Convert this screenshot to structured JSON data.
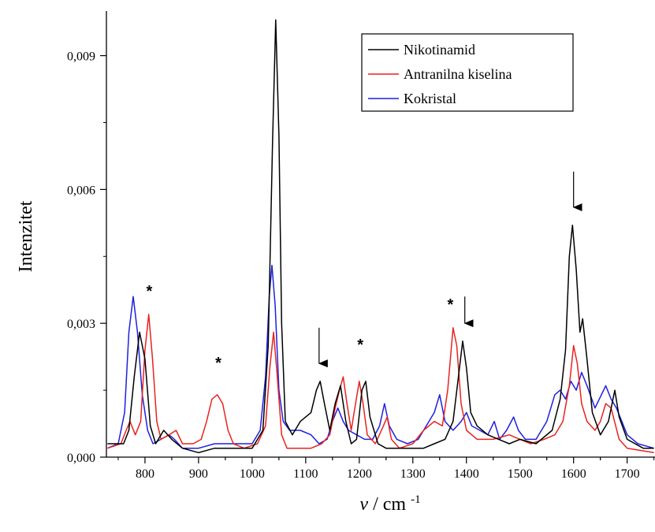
{
  "chart_data": {
    "type": "line",
    "xlabel_main": "ν",
    "xlabel_unit": "/ cm",
    "xlabel_sup": "-1",
    "ylabel": "Intenzitet",
    "xlim": [
      728,
      1752
    ],
    "ylim": [
      0,
      0.01
    ],
    "x_ticks": [
      800,
      900,
      1000,
      1100,
      1200,
      1300,
      1400,
      1500,
      1600,
      1700
    ],
    "x_tick_labels": [
      "800",
      "900",
      "1000",
      "1100",
      "1200",
      "1300",
      "1400",
      "1500",
      "1600",
      "1700"
    ],
    "y_ticks": [
      0,
      0.003,
      0.006,
      0.009
    ],
    "y_tick_labels": [
      "0,000",
      "0,003",
      "0,006",
      "0,009"
    ],
    "grid": false,
    "legend_position": "top-right",
    "series": [
      {
        "name": "Nikotinamid",
        "color": "#000000",
        "points": [
          [
            730,
            0.0003
          ],
          [
            760,
            0.0003
          ],
          [
            770,
            0.0006
          ],
          [
            780,
            0.0018
          ],
          [
            790,
            0.0028
          ],
          [
            800,
            0.0022
          ],
          [
            810,
            0.0007
          ],
          [
            820,
            0.0003
          ],
          [
            835,
            0.0006
          ],
          [
            850,
            0.0004
          ],
          [
            870,
            0.0002
          ],
          [
            900,
            0.0001
          ],
          [
            930,
            0.0002
          ],
          [
            960,
            0.0002
          ],
          [
            1000,
            0.0002
          ],
          [
            1020,
            0.0006
          ],
          [
            1030,
            0.0025
          ],
          [
            1038,
            0.007
          ],
          [
            1044,
            0.0098
          ],
          [
            1050,
            0.0072
          ],
          [
            1055,
            0.003
          ],
          [
            1062,
            0.0008
          ],
          [
            1075,
            0.0005
          ],
          [
            1090,
            0.0008
          ],
          [
            1110,
            0.001
          ],
          [
            1120,
            0.0015
          ],
          [
            1127,
            0.0017
          ],
          [
            1135,
            0.0012
          ],
          [
            1145,
            0.0006
          ],
          [
            1155,
            0.0012
          ],
          [
            1165,
            0.0016
          ],
          [
            1175,
            0.0008
          ],
          [
            1185,
            0.0003
          ],
          [
            1195,
            0.0004
          ],
          [
            1205,
            0.0015
          ],
          [
            1212,
            0.0017
          ],
          [
            1220,
            0.0009
          ],
          [
            1235,
            0.0003
          ],
          [
            1250,
            0.0002
          ],
          [
            1280,
            0.0002
          ],
          [
            1320,
            0.0002
          ],
          [
            1340,
            0.0003
          ],
          [
            1360,
            0.0004
          ],
          [
            1375,
            0.0008
          ],
          [
            1385,
            0.0018
          ],
          [
            1393,
            0.0026
          ],
          [
            1400,
            0.002
          ],
          [
            1408,
            0.001
          ],
          [
            1420,
            0.0007
          ],
          [
            1440,
            0.0005
          ],
          [
            1460,
            0.0004
          ],
          [
            1480,
            0.0003
          ],
          [
            1500,
            0.0004
          ],
          [
            1530,
            0.0003
          ],
          [
            1560,
            0.0006
          ],
          [
            1575,
            0.0013
          ],
          [
            1585,
            0.0024
          ],
          [
            1592,
            0.0045
          ],
          [
            1598,
            0.0052
          ],
          [
            1605,
            0.0042
          ],
          [
            1612,
            0.0028
          ],
          [
            1617,
            0.0031
          ],
          [
            1625,
            0.0022
          ],
          [
            1635,
            0.001
          ],
          [
            1650,
            0.0005
          ],
          [
            1665,
            0.0008
          ],
          [
            1677,
            0.0015
          ],
          [
            1685,
            0.0009
          ],
          [
            1700,
            0.0004
          ],
          [
            1730,
            0.0002
          ],
          [
            1750,
            0.0002
          ]
        ]
      },
      {
        "name": "Antranilna kiselina",
        "color": "#e8231f",
        "points": [
          [
            730,
            0.0002
          ],
          [
            755,
            0.0003
          ],
          [
            765,
            0.0006
          ],
          [
            772,
            0.0008
          ],
          [
            782,
            0.0005
          ],
          [
            792,
            0.0008
          ],
          [
            800,
            0.0024
          ],
          [
            807,
            0.0032
          ],
          [
            814,
            0.0022
          ],
          [
            822,
            0.0008
          ],
          [
            830,
            0.0004
          ],
          [
            845,
            0.0005
          ],
          [
            858,
            0.0006
          ],
          [
            870,
            0.0003
          ],
          [
            890,
            0.0003
          ],
          [
            905,
            0.0004
          ],
          [
            915,
            0.0008
          ],
          [
            925,
            0.0013
          ],
          [
            935,
            0.0014
          ],
          [
            945,
            0.0012
          ],
          [
            955,
            0.0006
          ],
          [
            965,
            0.0003
          ],
          [
            985,
            0.0002
          ],
          [
            1010,
            0.0003
          ],
          [
            1025,
            0.0007
          ],
          [
            1033,
            0.002
          ],
          [
            1040,
            0.0028
          ],
          [
            1047,
            0.0018
          ],
          [
            1055,
            0.0005
          ],
          [
            1065,
            0.0002
          ],
          [
            1090,
            0.0002
          ],
          [
            1110,
            0.0002
          ],
          [
            1130,
            0.0003
          ],
          [
            1145,
            0.0005
          ],
          [
            1155,
            0.0011
          ],
          [
            1163,
            0.0015
          ],
          [
            1170,
            0.0018
          ],
          [
            1177,
            0.0012
          ],
          [
            1185,
            0.0006
          ],
          [
            1193,
            0.0012
          ],
          [
            1200,
            0.0017
          ],
          [
            1207,
            0.0012
          ],
          [
            1215,
            0.0005
          ],
          [
            1230,
            0.0003
          ],
          [
            1245,
            0.0007
          ],
          [
            1252,
            0.0009
          ],
          [
            1260,
            0.0004
          ],
          [
            1275,
            0.0002
          ],
          [
            1300,
            0.0003
          ],
          [
            1320,
            0.0006
          ],
          [
            1340,
            0.0008
          ],
          [
            1355,
            0.0007
          ],
          [
            1365,
            0.0015
          ],
          [
            1375,
            0.0029
          ],
          [
            1382,
            0.0025
          ],
          [
            1390,
            0.0012
          ],
          [
            1400,
            0.0006
          ],
          [
            1420,
            0.0004
          ],
          [
            1450,
            0.0004
          ],
          [
            1480,
            0.0005
          ],
          [
            1500,
            0.0004
          ],
          [
            1520,
            0.0003
          ],
          [
            1545,
            0.0004
          ],
          [
            1565,
            0.0005
          ],
          [
            1580,
            0.0008
          ],
          [
            1592,
            0.0016
          ],
          [
            1600,
            0.0025
          ],
          [
            1607,
            0.0021
          ],
          [
            1615,
            0.0012
          ],
          [
            1625,
            0.0008
          ],
          [
            1640,
            0.0006
          ],
          [
            1650,
            0.0008
          ],
          [
            1660,
            0.0012
          ],
          [
            1670,
            0.0011
          ],
          [
            1685,
            0.0004
          ],
          [
            1700,
            0.0002
          ],
          [
            1750,
            0.0001
          ]
        ]
      },
      {
        "name": "Kokristal",
        "color": "#1f1fe0",
        "points": [
          [
            730,
            0.0002
          ],
          [
            750,
            0.0003
          ],
          [
            762,
            0.001
          ],
          [
            770,
            0.0028
          ],
          [
            778,
            0.0036
          ],
          [
            786,
            0.0028
          ],
          [
            795,
            0.0014
          ],
          [
            805,
            0.0006
          ],
          [
            815,
            0.0003
          ],
          [
            830,
            0.0004
          ],
          [
            845,
            0.0005
          ],
          [
            855,
            0.0004
          ],
          [
            870,
            0.0002
          ],
          [
            900,
            0.0002
          ],
          [
            930,
            0.0003
          ],
          [
            960,
            0.0003
          ],
          [
            1000,
            0.0003
          ],
          [
            1015,
            0.0006
          ],
          [
            1025,
            0.0018
          ],
          [
            1032,
            0.0036
          ],
          [
            1037,
            0.0043
          ],
          [
            1043,
            0.0034
          ],
          [
            1050,
            0.0015
          ],
          [
            1058,
            0.0008
          ],
          [
            1070,
            0.0006
          ],
          [
            1090,
            0.0006
          ],
          [
            1110,
            0.0005
          ],
          [
            1125,
            0.0003
          ],
          [
            1140,
            0.0004
          ],
          [
            1150,
            0.0008
          ],
          [
            1160,
            0.0011
          ],
          [
            1170,
            0.0008
          ],
          [
            1180,
            0.0006
          ],
          [
            1195,
            0.0005
          ],
          [
            1210,
            0.0004
          ],
          [
            1225,
            0.0004
          ],
          [
            1238,
            0.0007
          ],
          [
            1247,
            0.0012
          ],
          [
            1256,
            0.0007
          ],
          [
            1270,
            0.0004
          ],
          [
            1290,
            0.0003
          ],
          [
            1310,
            0.0004
          ],
          [
            1325,
            0.0007
          ],
          [
            1340,
            0.001
          ],
          [
            1350,
            0.0014
          ],
          [
            1360,
            0.0008
          ],
          [
            1375,
            0.0006
          ],
          [
            1390,
            0.0008
          ],
          [
            1400,
            0.001
          ],
          [
            1410,
            0.0007
          ],
          [
            1425,
            0.0006
          ],
          [
            1440,
            0.0005
          ],
          [
            1452,
            0.0008
          ],
          [
            1462,
            0.0004
          ],
          [
            1475,
            0.0006
          ],
          [
            1488,
            0.0009
          ],
          [
            1497,
            0.0006
          ],
          [
            1510,
            0.0004
          ],
          [
            1530,
            0.0004
          ],
          [
            1550,
            0.0008
          ],
          [
            1565,
            0.0014
          ],
          [
            1575,
            0.0015
          ],
          [
            1585,
            0.0013
          ],
          [
            1595,
            0.0017
          ],
          [
            1605,
            0.0015
          ],
          [
            1615,
            0.0019
          ],
          [
            1625,
            0.0016
          ],
          [
            1640,
            0.0011
          ],
          [
            1652,
            0.0014
          ],
          [
            1660,
            0.0016
          ],
          [
            1670,
            0.0013
          ],
          [
            1680,
            0.0011
          ],
          [
            1690,
            0.0008
          ],
          [
            1700,
            0.0005
          ],
          [
            1720,
            0.0003
          ],
          [
            1750,
            0.0002
          ]
        ]
      }
    ],
    "annotations": [
      {
        "type": "asterisk",
        "text": "*",
        "x": 808,
        "y": 0.0036
      },
      {
        "type": "asterisk",
        "text": "*",
        "x": 937,
        "y": 0.002
      },
      {
        "type": "asterisk",
        "text": "*",
        "x": 1202,
        "y": 0.0024
      },
      {
        "type": "asterisk",
        "text": "*",
        "x": 1370,
        "y": 0.0033
      },
      {
        "type": "arrow",
        "x": 1125,
        "y_from": 0.0029,
        "y_to": 0.0021
      },
      {
        "type": "arrow",
        "x": 1397,
        "y_from": 0.0036,
        "y_to": 0.003
      },
      {
        "type": "arrow",
        "x": 1600,
        "y_from": 0.0064,
        "y_to": 0.0056
      }
    ]
  }
}
